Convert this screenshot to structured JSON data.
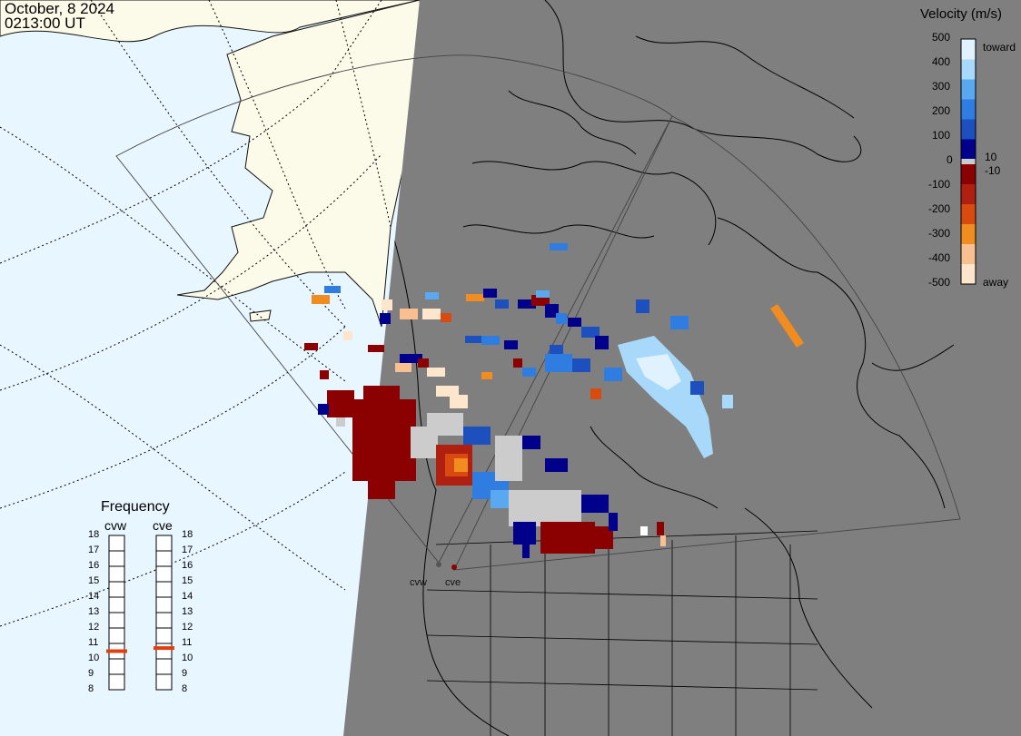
{
  "header": {
    "date": "October, 8 2024",
    "time": "0213:00 UT"
  },
  "colorbar": {
    "title": "Velocity (m/s)",
    "ticks": [
      "500",
      "400",
      "300",
      "200",
      "100",
      "0",
      "-100",
      "-200",
      "-300",
      "-400",
      "-500"
    ],
    "extra_ticks": [
      "10",
      "-10"
    ],
    "toward_label": "toward",
    "away_label": "away",
    "colors_toward": [
      "#00008b",
      "#1e4fbf",
      "#2f7de0",
      "#5aa8f0",
      "#a8d8fa",
      "#e0f2ff"
    ],
    "colors_away": [
      "#8b0000",
      "#b02010",
      "#d84a10",
      "#f08c20",
      "#f8c090",
      "#fde6cc"
    ],
    "zero_color": "#cccccc"
  },
  "frequency": {
    "title": "Frequency",
    "radars": [
      {
        "name": "cvw",
        "selected_mhz": 10.5
      },
      {
        "name": "cve",
        "selected_mhz": 10.7
      }
    ],
    "scale": [
      "18",
      "17",
      "16",
      "15",
      "14",
      "13",
      "12",
      "11",
      "10",
      "9",
      "8"
    ]
  },
  "sites": {
    "west": "cvw",
    "east": "cve"
  },
  "map_colors": {
    "ocean": "#e8f6ff",
    "land": "#fcfae8",
    "night": "#7f7f7f",
    "ground_scatter": "#cccccc"
  }
}
